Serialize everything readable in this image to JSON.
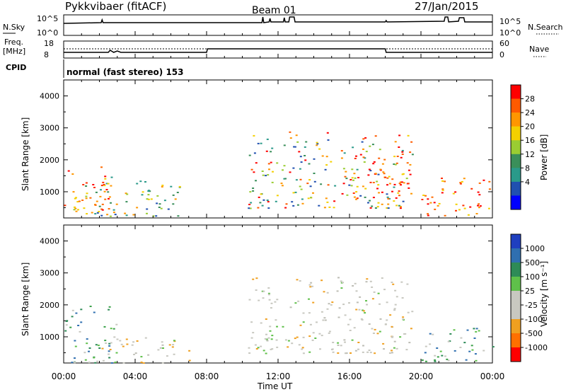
{
  "header": {
    "title": "Pykkvibaer (fitACF)",
    "beam": "Beam 01",
    "date": "27/Jan/2015"
  },
  "noise_panel": {
    "left_label": "N.Sky",
    "left_ticks": [
      "10^5",
      "10^0"
    ],
    "right_label": "N.Search",
    "right_ticks": [
      "10^5",
      "10^0"
    ]
  },
  "freq_panel": {
    "left_label_line1": "Freq.",
    "left_label_line2": "[MHz]",
    "left_ticks": [
      "18",
      "8"
    ],
    "right_label": "Nave",
    "right_ticks": [
      "60",
      "0"
    ]
  },
  "cpid": {
    "label": "CPID",
    "text": "normal (fast stereo) 153"
  },
  "power_panel": {
    "ylabel": "Slant Range [km]",
    "cbar_label": "Power [dB]",
    "cbar_ticks": [
      "28",
      "24",
      "20",
      "16",
      "12",
      "8",
      "4"
    ],
    "cbar_colors": [
      "#ff0000",
      "#ff5a00",
      "#ff9600",
      "#f4d000",
      "#9acd32",
      "#3a8f5a",
      "#2a9a8a",
      "#2050b0",
      "#0000ff"
    ]
  },
  "velocity_panel": {
    "ylabel": "Slant Range [km]",
    "cbar_label": "Velocity [m s⁻¹]",
    "cbar_ticks": [
      "1000",
      "500",
      "100",
      "25",
      "-25",
      "-100",
      "-500",
      "-1000"
    ],
    "cbar_colors": [
      "#1f3fbf",
      "#2f6fb0",
      "#2e8b57",
      "#5fc04a",
      "#c8c8c0",
      "#c8c8c0",
      "#f0a020",
      "#ff7000",
      "#ff0000"
    ]
  },
  "xaxis": {
    "label": "Time UT",
    "ticks": [
      "00:00",
      "04:00",
      "08:00",
      "12:00",
      "16:00",
      "20:00",
      "00:00"
    ]
  },
  "chart_data": [
    {
      "type": "heatmap",
      "title": "Power",
      "xlabel": "Time UT",
      "ylabel": "Slant Range [km]",
      "x_range": [
        "00:00",
        "24:00"
      ],
      "y_ticks": [
        1000,
        2000,
        3000,
        4000
      ],
      "ylim": [
        180,
        4500
      ],
      "color_scale": {
        "label": "Power [dB]",
        "ticks": [
          4,
          8,
          12,
          16,
          20,
          24,
          28
        ]
      },
      "scatter_regions": [
        {
          "t0": 0.0,
          "t1": 2.6,
          "r0": 300,
          "r1": 1800,
          "level": "high"
        },
        {
          "t0": 0.5,
          "t1": 6.5,
          "r0": 250,
          "r1": 1500,
          "level": "mid"
        },
        {
          "t0": 10.3,
          "t1": 19.5,
          "r0": 500,
          "r1": 2900,
          "level": "mixed"
        },
        {
          "t0": 16.0,
          "t1": 19.5,
          "r0": 800,
          "r1": 2200,
          "level": "high"
        },
        {
          "t0": 20.0,
          "t1": 24.0,
          "r0": 250,
          "r1": 1500,
          "level": "high"
        }
      ]
    },
    {
      "type": "heatmap",
      "title": "Velocity",
      "xlabel": "Time UT",
      "ylabel": "Slant Range [km]",
      "x_range": [
        "00:00",
        "24:00"
      ],
      "y_ticks": [
        1000,
        2000,
        3000,
        4000
      ],
      "ylim": [
        180,
        4500
      ],
      "color_scale": {
        "label": "Velocity [m s⁻¹]",
        "ticks": [
          -1000,
          -500,
          -100,
          -25,
          25,
          100,
          500,
          1000
        ]
      },
      "scatter_regions": [
        {
          "t0": 0.0,
          "t1": 3.0,
          "r0": 200,
          "r1": 2000,
          "level": "positive"
        },
        {
          "t0": 2.0,
          "t1": 7.0,
          "r0": 200,
          "r1": 1000,
          "level": "near-zero"
        },
        {
          "t0": 10.3,
          "t1": 19.5,
          "r0": 500,
          "r1": 2900,
          "level": "near-zero"
        },
        {
          "t0": 20.0,
          "t1": 24.0,
          "r0": 250,
          "r1": 1300,
          "level": "positive"
        }
      ]
    }
  ]
}
